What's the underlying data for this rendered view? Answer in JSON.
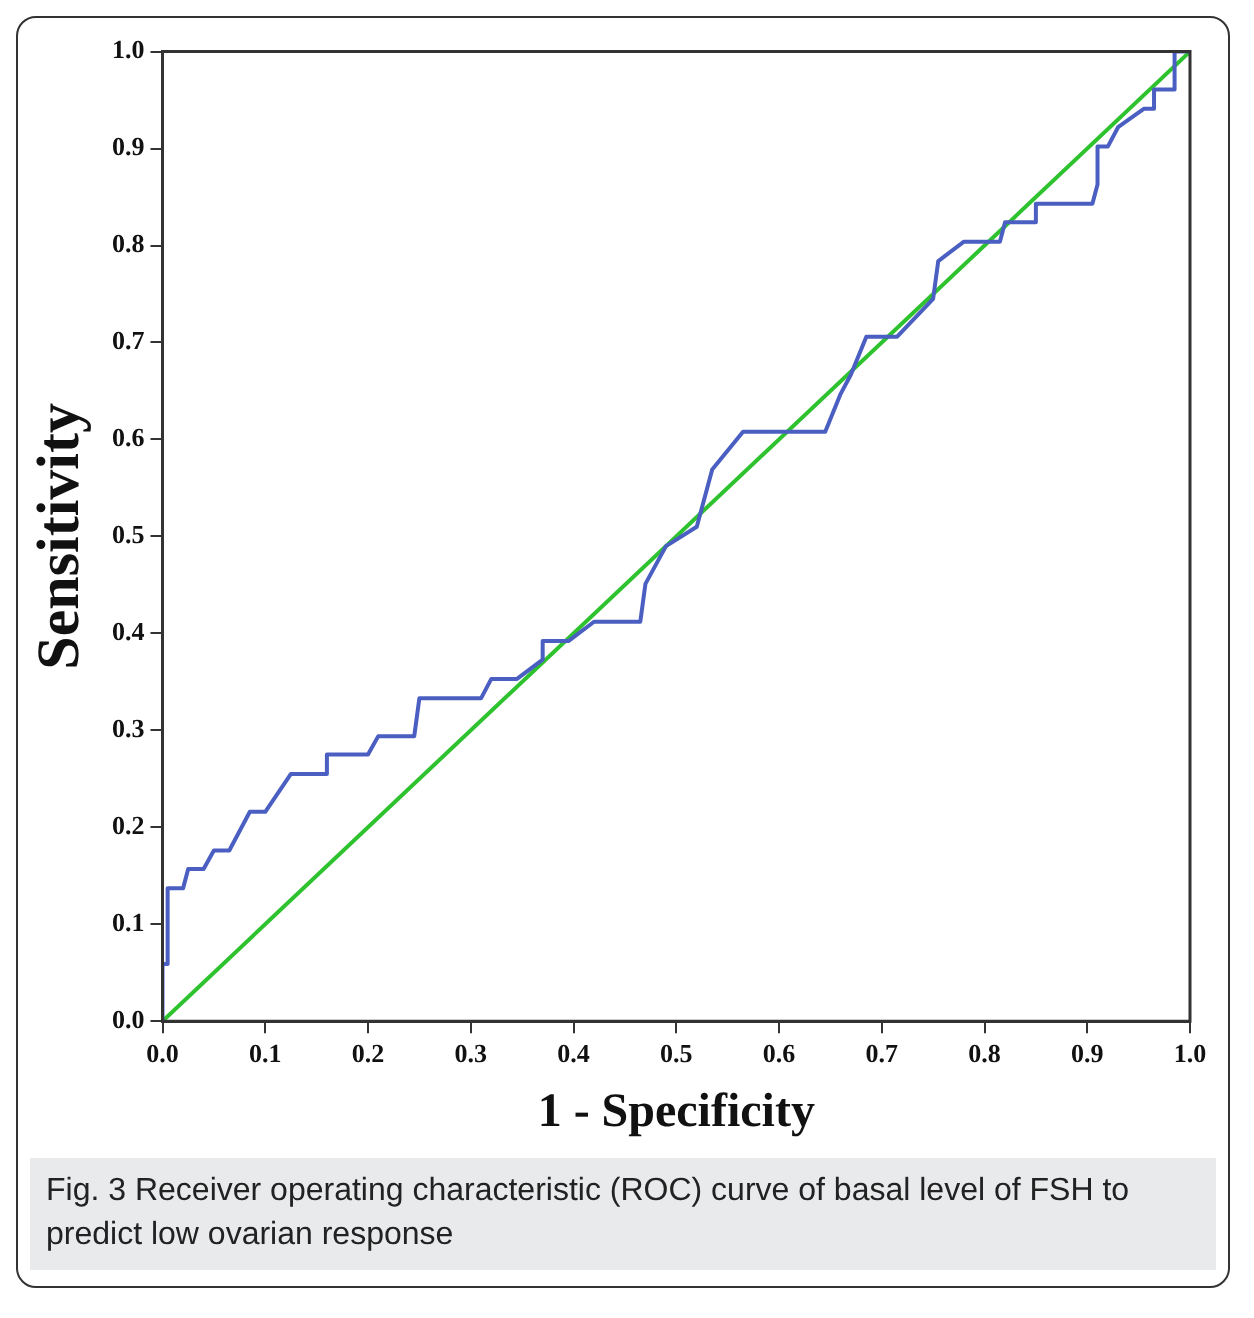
{
  "chart_data": {
    "type": "line",
    "xlabel": "1 - Specificity",
    "ylabel": "Sensitivity",
    "annotations": [
      "Fig. 3 Receiver operating characteristic (ROC) curve of basal level of FSH to predict low ovarian response"
    ],
    "xlim": [
      0,
      1
    ],
    "ylim": [
      0,
      1
    ],
    "xticks": [
      {
        "value": 0,
        "label": "0.0"
      },
      0.1,
      0.2,
      0.3,
      0.4,
      0.5,
      0.6,
      0.7,
      0.8,
      0.9,
      {
        "value": 1,
        "label": "1.0"
      }
    ],
    "yticks": [
      {
        "value": 0,
        "label": "0.0"
      },
      0.1,
      0.2,
      0.3,
      0.4,
      0.5,
      0.6,
      0.7,
      0.8,
      0.9,
      {
        "value": 1,
        "label": "1.0"
      }
    ],
    "grid": false,
    "legend": false,
    "marker": "none",
    "line_style": "solid",
    "series": [
      {
        "color": "#4a5fc1",
        "x": [
          0,
          0,
          0.005,
          0.005,
          0.02,
          0.025,
          0.04,
          0.05,
          0.065,
          0.085,
          0.1,
          0.125,
          0.16,
          0.16,
          0.2,
          0.21,
          0.245,
          0.25,
          0.31,
          0.32,
          0.345,
          0.37,
          0.37,
          0.395,
          0.42,
          0.465,
          0.47,
          0.49,
          0.52,
          0.535,
          0.565,
          0.645,
          0.66,
          0.67,
          0.685,
          0.715,
          0.75,
          0.755,
          0.78,
          0.815,
          0.82,
          0.85,
          0.85,
          0.905,
          0.91,
          0.91,
          0.92,
          0.93,
          0.955,
          0.965,
          0.965,
          0.985,
          0.985,
          1
        ],
        "values": [
          0,
          0.059,
          0.059,
          0.137,
          0.137,
          0.157,
          0.157,
          0.176,
          0.176,
          0.216,
          0.216,
          0.255,
          0.255,
          0.275,
          0.275,
          0.294,
          0.294,
          0.333,
          0.333,
          0.353,
          0.353,
          0.373,
          0.392,
          0.392,
          0.412,
          0.412,
          0.451,
          0.49,
          0.51,
          0.569,
          0.608,
          0.608,
          0.647,
          0.667,
          0.706,
          0.706,
          0.745,
          0.784,
          0.804,
          0.804,
          0.824,
          0.824,
          0.843,
          0.843,
          0.863,
          0.902,
          0.902,
          0.922,
          0.941,
          0.941,
          0.961,
          0.961,
          1,
          1
        ]
      },
      {
        "color": "#2ec22e",
        "x": [
          0,
          1
        ],
        "values": [
          0,
          1
        ]
      }
    ]
  }
}
